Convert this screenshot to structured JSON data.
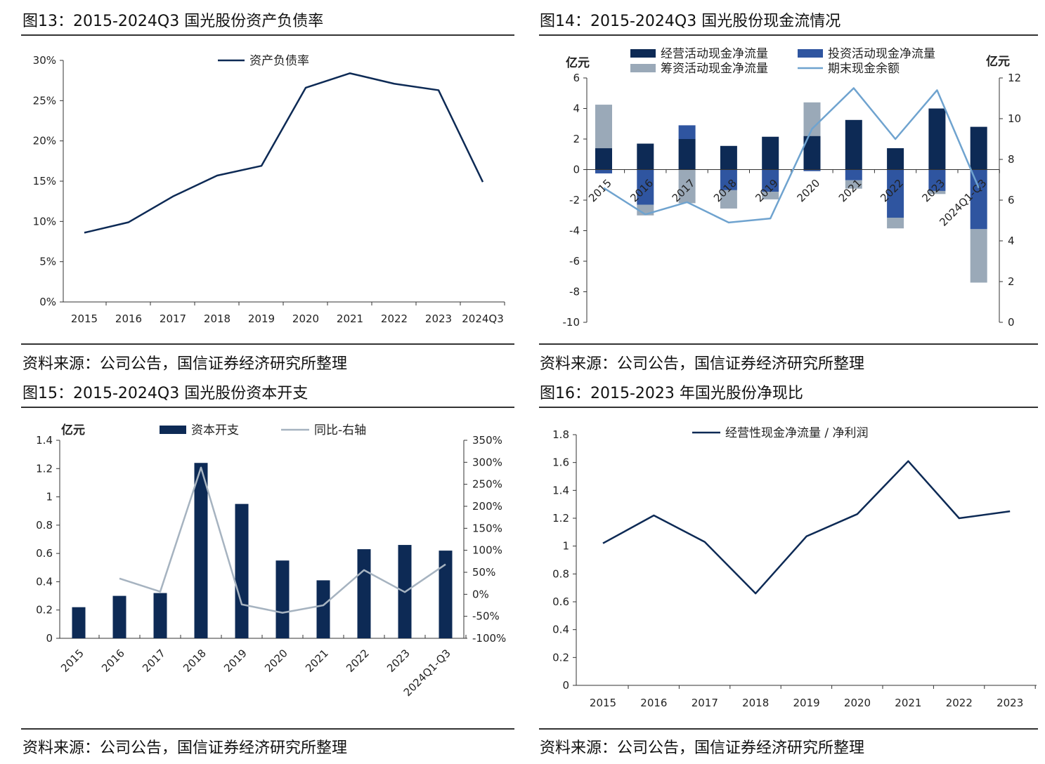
{
  "source": "资料来源：公司公告，国信证券经济研究所整理",
  "colors": {
    "navy": "#0d2a55",
    "blue": "#2f55a0",
    "grey": "#9aa9b8",
    "cash_line": "#6fa3cf",
    "yoy_line": "#a6b3c0"
  },
  "chart_data": [
    {
      "title": "图13：2015-2024Q3 国光股份资产负债率",
      "type": "line",
      "categories": [
        "2015",
        "2016",
        "2017",
        "2018",
        "2019",
        "2020",
        "2021",
        "2022",
        "2023",
        "2024Q3"
      ],
      "series": [
        {
          "name": "资产负债率",
          "values": [
            8.6,
            9.9,
            13.1,
            15.7,
            16.9,
            26.6,
            28.4,
            27.1,
            26.3,
            14.9
          ]
        }
      ],
      "yticks": [
        "0%",
        "5%",
        "10%",
        "15%",
        "20%",
        "25%",
        "30%"
      ],
      "ylim": [
        0,
        30
      ]
    },
    {
      "title": "图14：2015-2024Q3 国光股份现金流情况",
      "type": "bar",
      "categories": [
        "2015",
        "2016",
        "2017",
        "2018",
        "2019",
        "2020",
        "2021",
        "2022",
        "2023",
        "2024Q1-Q3"
      ],
      "unit_left": "亿元",
      "unit_right": "亿元",
      "series": [
        {
          "name": "经营活动现金净流量",
          "values": [
            1.4,
            1.7,
            2.0,
            1.55,
            2.15,
            2.2,
            3.25,
            1.4,
            4.0,
            2.8
          ]
        },
        {
          "name": "投资活动现金净流量",
          "values": [
            -0.25,
            -2.3,
            0.9,
            -1.35,
            -1.45,
            -0.1,
            -0.7,
            -3.15,
            -1.4,
            -3.9
          ]
        },
        {
          "name": "筹资活动现金净流量",
          "values": [
            2.85,
            -0.7,
            -2.2,
            -1.2,
            -0.5,
            2.2,
            -0.55,
            -0.7,
            -0.2,
            -3.5
          ]
        },
        {
          "name": "期末现金余额",
          "values": [
            6.6,
            5.3,
            5.9,
            4.9,
            5.1,
            9.5,
            11.5,
            9.0,
            11.4,
            6.6
          ],
          "axis": "right"
        }
      ],
      "yticks": [
        "6",
        "4",
        "2",
        "0",
        "-2",
        "-4",
        "-6",
        "-8",
        "-10"
      ],
      "ylim": [
        -10,
        6
      ],
      "yticks_right": [
        "12",
        "10",
        "8",
        "6",
        "4",
        "2",
        "0"
      ],
      "ylim_right": [
        0,
        12
      ]
    },
    {
      "title": "图15：2015-2024Q3 国光股份资本开支",
      "type": "bar",
      "categories": [
        "2015",
        "2016",
        "2017",
        "2018",
        "2019",
        "2020",
        "2021",
        "2022",
        "2023",
        "2024Q1-Q3"
      ],
      "unit_left": "亿元",
      "series": [
        {
          "name": "资本开支",
          "values": [
            0.22,
            0.3,
            0.32,
            1.24,
            0.95,
            0.55,
            0.41,
            0.63,
            0.66,
            0.62
          ]
        },
        {
          "name": "同比-右轴",
          "values": [
            null,
            36,
            6,
            288,
            -23,
            -42,
            -25,
            55,
            5,
            68
          ],
          "axis": "right"
        }
      ],
      "yticks": [
        "0",
        "0.2",
        "0.4",
        "0.6",
        "0.8",
        "1",
        "1.2",
        "1.4"
      ],
      "ylim": [
        0,
        1.4
      ],
      "yticks_right": [
        "-100%",
        "-50%",
        "0%",
        "50%",
        "100%",
        "150%",
        "200%",
        "250%",
        "300%",
        "350%"
      ],
      "ylim_right": [
        -100,
        350
      ]
    },
    {
      "title": "图16：2015-2023 年国光股份净现比",
      "type": "line",
      "categories": [
        "2015",
        "2016",
        "2017",
        "2018",
        "2019",
        "2020",
        "2021",
        "2022",
        "2023"
      ],
      "series": [
        {
          "name": "经营性现金净流量 / 净利润",
          "values": [
            1.02,
            1.22,
            1.03,
            0.66,
            1.07,
            1.23,
            1.61,
            1.2,
            1.25
          ]
        }
      ],
      "yticks": [
        "0",
        "0.2",
        "0.4",
        "0.6",
        "0.8",
        "1",
        "1.2",
        "1.4",
        "1.6",
        "1.8"
      ],
      "ylim": [
        0,
        1.8
      ]
    }
  ]
}
